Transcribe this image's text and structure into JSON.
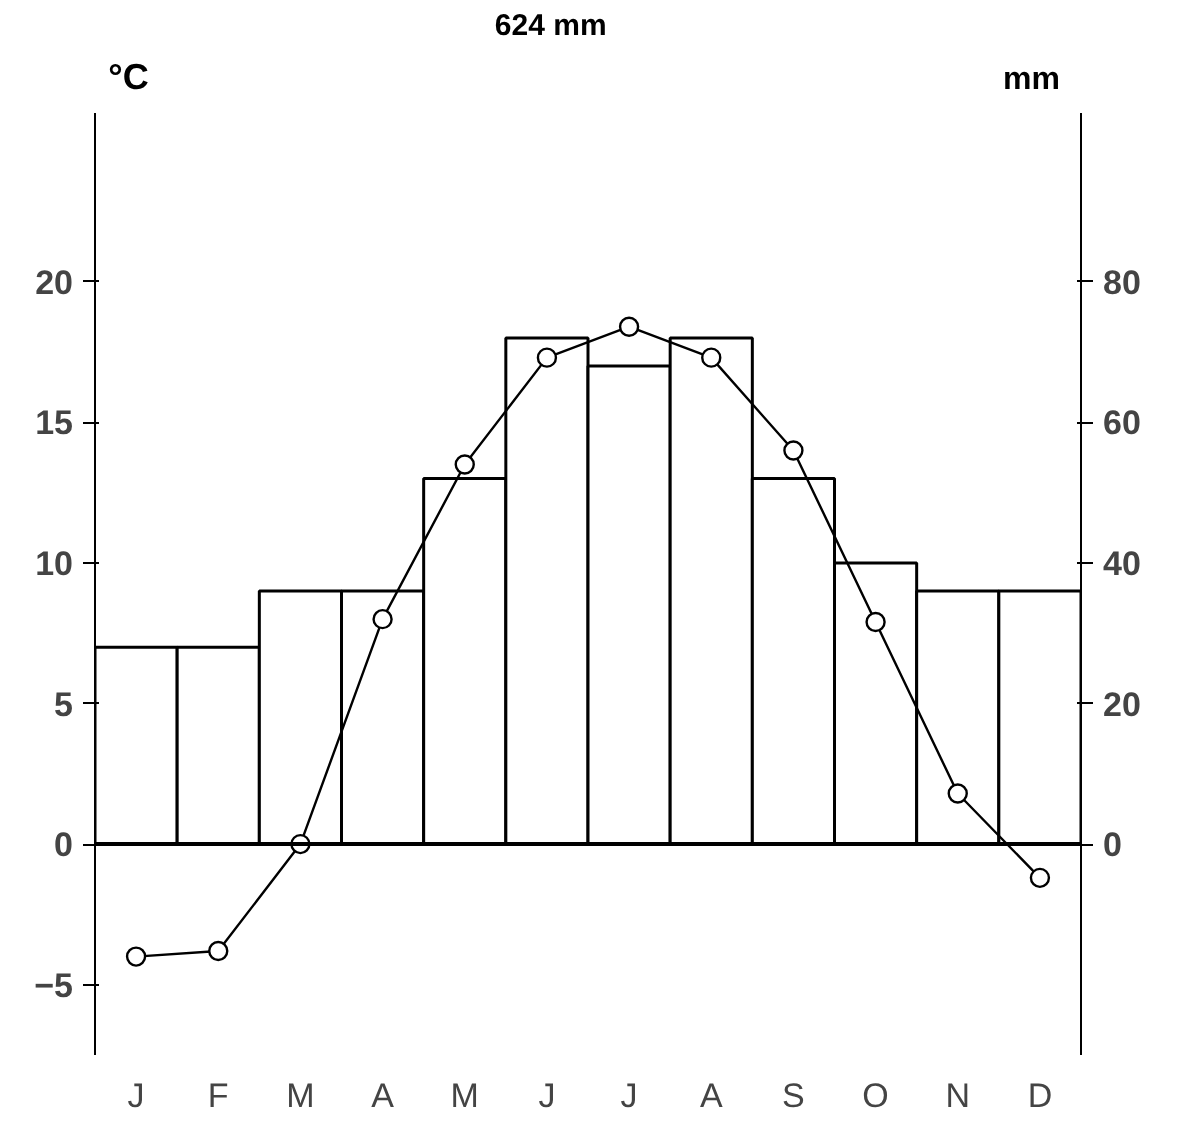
{
  "chart_data": {
    "type": "bar",
    "title": "624 mm",
    "ylabel": "°C",
    "y2label": "mm",
    "categories": [
      "J",
      "F",
      "M",
      "A",
      "M",
      "J",
      "J",
      "A",
      "S",
      "O",
      "N",
      "D"
    ],
    "series": [
      {
        "axis": "y2",
        "color": "#ffffff",
        "values": [
          28,
          28,
          36,
          36,
          52,
          72,
          68,
          72,
          52,
          40,
          36,
          36
        ]
      },
      {
        "type": "line",
        "axis": "y",
        "color": "#000000",
        "values": [
          -4.0,
          -3.8,
          0.0,
          8.0,
          13.5,
          17.3,
          18.4,
          17.3,
          14.0,
          7.9,
          1.8,
          -1.2
        ]
      }
    ],
    "ylim": [
      -7.5,
      26
    ],
    "yticks": [
      -5,
      0,
      5,
      10,
      15,
      20
    ],
    "y2lim": [
      -30,
      104
    ],
    "y2ticks": [
      0,
      20,
      40,
      60,
      80
    ],
    "ref_lines": [
      {
        "axis": "y",
        "value": 0
      }
    ],
    "marker": "circle",
    "line_style": "solid",
    "grid": false
  }
}
